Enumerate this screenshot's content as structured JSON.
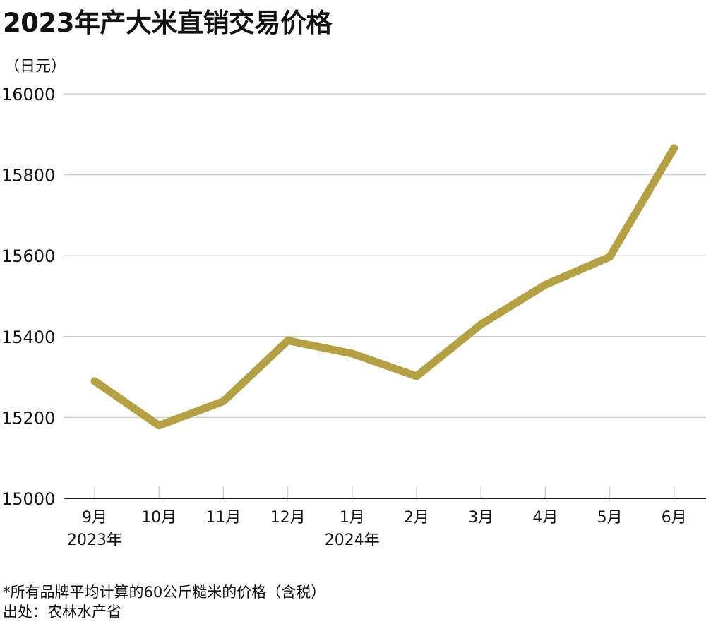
{
  "header": {
    "title": "2023年产大米直销交易价格",
    "unit": "（日元）"
  },
  "footer": {
    "note": "*所有品牌平均计算的60公斤糙米的价格（含税）",
    "source": "出处：农林水产省"
  },
  "colors": {
    "line": "#B5A042",
    "grid": "#cfcfcf",
    "axis": "#222222",
    "text": "#111111"
  },
  "chart_data": {
    "type": "line",
    "categories": [
      "9月",
      "10月",
      "11月",
      "12月",
      "1月",
      "2月",
      "3月",
      "4月",
      "5月",
      "6月"
    ],
    "year_labels": [
      {
        "category_index": 0,
        "text": "2023年"
      },
      {
        "category_index": 4,
        "text": "2024年"
      }
    ],
    "series": [
      {
        "values": [
          15290,
          15180,
          15240,
          15390,
          15358,
          15302,
          15430,
          15528,
          15597,
          15866
        ]
      }
    ],
    "ylim": [
      15000,
      16000
    ],
    "yticks": [
      15000,
      15200,
      15400,
      15600,
      15800,
      16000
    ],
    "grid": true,
    "legend": "none"
  }
}
